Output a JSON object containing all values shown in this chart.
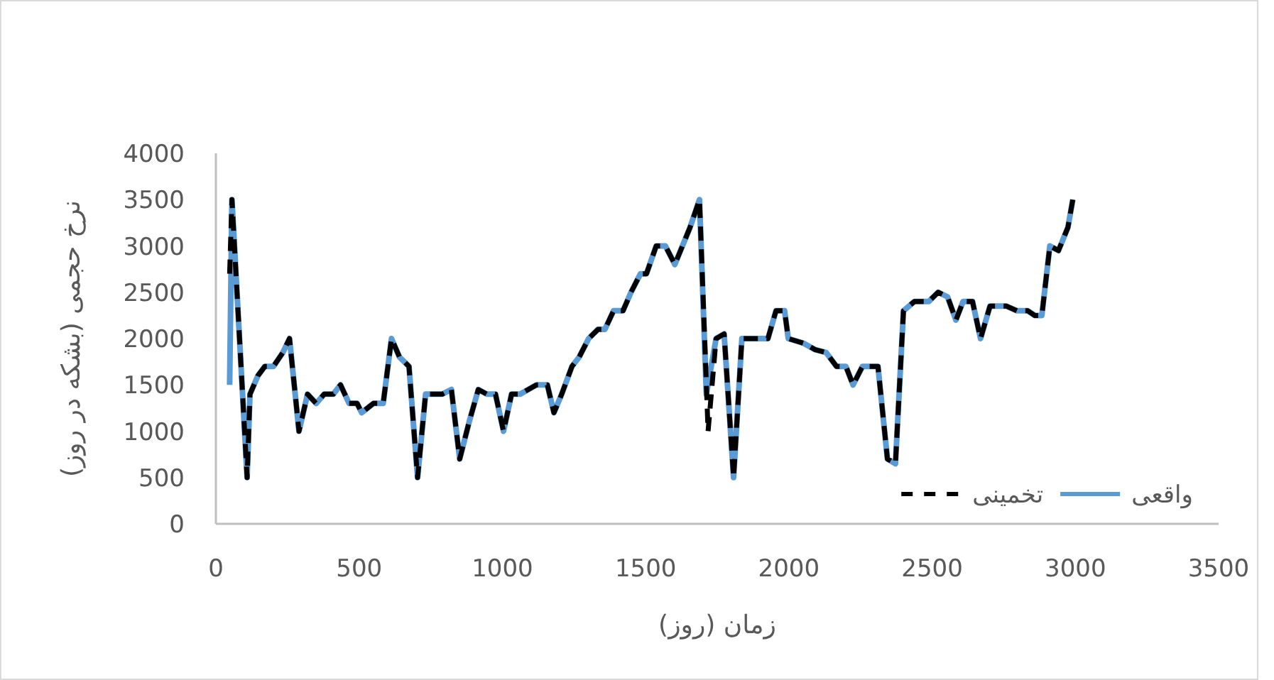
{
  "chart_data": {
    "type": "line",
    "xlabel": "زمان (روز)",
    "ylabel": "نرخ حجمی (بشکه در روز)",
    "xlim": [
      0,
      3500
    ],
    "xticks": [
      0,
      500,
      1000,
      1500,
      2000,
      2500,
      3000,
      3500
    ],
    "ylim": [
      0,
      4000
    ],
    "yticks": [
      0,
      500,
      1000,
      1500,
      2000,
      2500,
      3000,
      3500,
      4000
    ],
    "grid": false,
    "legend": "bottom right",
    "marker": "none",
    "series": [
      {
        "name": "واقعی",
        "color": "#5b9bd5",
        "line_style": "solid",
        "x": [
          48,
          56,
          109,
          119,
          147,
          171,
          201,
          234,
          257,
          290,
          320,
          350,
          378,
          410,
          435,
          465,
          493,
          509,
          550,
          584,
          613,
          641,
          674,
          704,
          732,
          790,
          822,
          851,
          884,
          916,
          946,
          976,
          1004,
          1032,
          1062,
          1119,
          1157,
          1180,
          1207,
          1243,
          1268,
          1301,
          1334,
          1358,
          1388,
          1421,
          1449,
          1482,
          1503,
          1537,
          1569,
          1602,
          1655,
          1688,
          1712,
          1746,
          1774,
          1807,
          1836,
          1927,
          1955,
          1985,
          1998,
          2051,
          2092,
          2130,
          2166,
          2199,
          2224,
          2257,
          2311,
          2344,
          2372,
          2400,
          2438,
          2488,
          2521,
          2554,
          2583,
          2608,
          2641,
          2669,
          2702,
          2760,
          2796,
          2834,
          2858,
          2883,
          2911,
          2941,
          2974,
          2991
        ],
        "values": [
          1500,
          3500,
          500,
          1400,
          1600,
          1700,
          1700,
          1850,
          2000,
          1000,
          1400,
          1300,
          1400,
          1400,
          1500,
          1300,
          1300,
          1200,
          1300,
          1300,
          2000,
          1800,
          1700,
          500,
          1400,
          1400,
          1450,
          700,
          1100,
          1450,
          1400,
          1400,
          1000,
          1400,
          1400,
          1500,
          1500,
          1200,
          1400,
          1700,
          1800,
          2000,
          2100,
          2100,
          2300,
          2300,
          2500,
          2700,
          2700,
          3000,
          3000,
          2800,
          3200,
          3500,
          1400,
          2000,
          2050,
          500,
          2000,
          2000,
          2300,
          2300,
          2000,
          1950,
          1880,
          1850,
          1700,
          1700,
          1500,
          1700,
          1700,
          700,
          650,
          2300,
          2400,
          2400,
          2500,
          2450,
          2200,
          2400,
          2400,
          2000,
          2350,
          2350,
          2300,
          2300,
          2250,
          2250,
          3000,
          2950,
          3200,
          3500
        ]
      },
      {
        "name": "تخمینی",
        "color": "#000000",
        "line_style": "dashed",
        "x": [
          48,
          56,
          109,
          119,
          147,
          171,
          201,
          234,
          257,
          290,
          320,
          350,
          378,
          410,
          435,
          465,
          493,
          509,
          550,
          584,
          613,
          641,
          674,
          704,
          732,
          790,
          822,
          851,
          884,
          916,
          946,
          976,
          1004,
          1032,
          1062,
          1119,
          1157,
          1180,
          1207,
          1243,
          1268,
          1301,
          1334,
          1358,
          1388,
          1421,
          1449,
          1482,
          1503,
          1537,
          1569,
          1602,
          1655,
          1688,
          1718,
          1746,
          1774,
          1807,
          1836,
          1927,
          1955,
          1985,
          1998,
          2051,
          2092,
          2130,
          2166,
          2199,
          2224,
          2257,
          2311,
          2344,
          2372,
          2400,
          2438,
          2488,
          2521,
          2554,
          2583,
          2608,
          2641,
          2669,
          2702,
          2760,
          2796,
          2834,
          2858,
          2883,
          2911,
          2941,
          2974,
          2991
        ],
        "values": [
          2700,
          3500,
          500,
          1400,
          1600,
          1700,
          1700,
          1850,
          2000,
          1000,
          1400,
          1300,
          1400,
          1400,
          1500,
          1300,
          1300,
          1200,
          1300,
          1300,
          2000,
          1800,
          1700,
          500,
          1400,
          1400,
          1450,
          700,
          1100,
          1450,
          1400,
          1400,
          1000,
          1400,
          1400,
          1500,
          1500,
          1200,
          1400,
          1700,
          1800,
          2000,
          2100,
          2100,
          2300,
          2300,
          2500,
          2700,
          2700,
          3000,
          3000,
          2800,
          3200,
          3500,
          1000,
          2000,
          2050,
          500,
          2000,
          2000,
          2300,
          2300,
          2000,
          1950,
          1880,
          1850,
          1700,
          1700,
          1500,
          1700,
          1700,
          700,
          650,
          2300,
          2400,
          2400,
          2500,
          2450,
          2200,
          2400,
          2400,
          2000,
          2350,
          2350,
          2300,
          2300,
          2250,
          2250,
          3000,
          2950,
          3200,
          3500
        ]
      }
    ]
  }
}
